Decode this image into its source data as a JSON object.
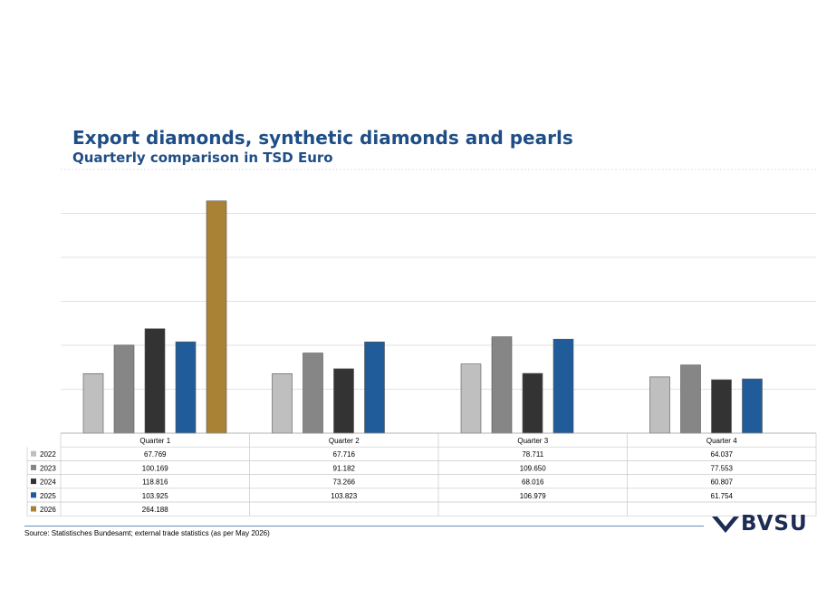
{
  "title": "Export diamonds, synthetic diamonds and pearls",
  "subtitle": "Quarterly comparison in TSD Euro",
  "source": "Source: Statistisches Bundesamt; external trade statistics (as per May 2026)",
  "logo_text": "BVSU",
  "chart_data": {
    "type": "bar",
    "title": "Export diamonds, synthetic diamonds and pearls",
    "subtitle": "Quarterly comparison in TSD Euro",
    "categories": [
      "Quarter 1",
      "Quarter 2",
      "Quarter 3",
      "Quarter 4"
    ],
    "ylim": [
      0,
      300
    ],
    "grid": true,
    "legend": "data-table-rows",
    "series": [
      {
        "name": "2022",
        "color": "#bfbfbf",
        "values": [
          67.769,
          67.716,
          78.711,
          64.037
        ],
        "labels": [
          "67.769",
          "67.716",
          "78.711",
          "64.037"
        ]
      },
      {
        "name": "2023",
        "color": "#868686",
        "values": [
          100.169,
          91.182,
          109.65,
          77.553
        ],
        "labels": [
          "100.169",
          "91.182",
          "109.650",
          "77.553"
        ]
      },
      {
        "name": "2024",
        "color": "#333333",
        "values": [
          118.816,
          73.266,
          68.016,
          60.807
        ],
        "labels": [
          "118.816",
          "73.266",
          "68.016",
          "60.807"
        ]
      },
      {
        "name": "2025",
        "color": "#1f5c99",
        "values": [
          103.925,
          103.823,
          106.979,
          61.754
        ],
        "labels": [
          "103.925",
          "103.823",
          "106.979",
          "61.754"
        ]
      },
      {
        "name": "2026",
        "color": "#a98236",
        "values": [
          264.188,
          null,
          null,
          null
        ],
        "labels": [
          "264.188",
          "",
          "",
          ""
        ]
      }
    ]
  }
}
